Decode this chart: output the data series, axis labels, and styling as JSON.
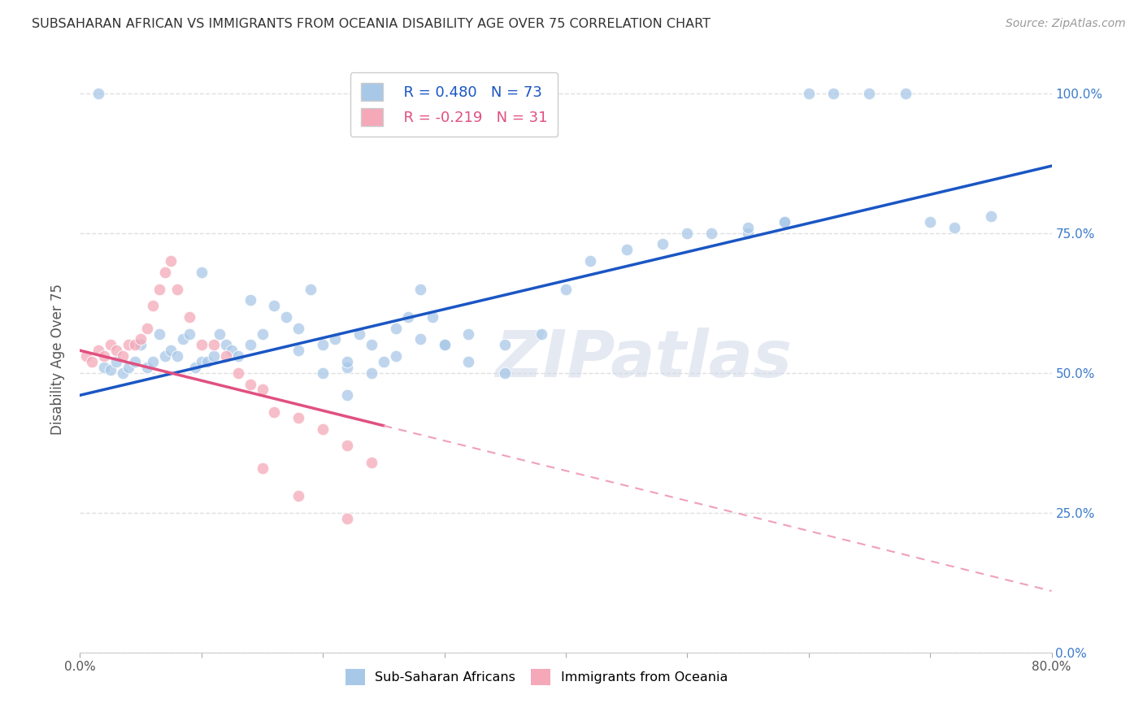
{
  "title": "SUBSAHARAN AFRICAN VS IMMIGRANTS FROM OCEANIA DISABILITY AGE OVER 75 CORRELATION CHART",
  "source": "Source: ZipAtlas.com",
  "ylabel": "Disability Age Over 75",
  "legend_labels": [
    "Sub-Saharan Africans",
    "Immigrants from Oceania"
  ],
  "r_blue": 0.48,
  "n_blue": 73,
  "r_pink": -0.219,
  "n_pink": 31,
  "blue_color": "#a8c8e8",
  "pink_color": "#f4a8b8",
  "blue_line_color": "#1a56c4",
  "pink_line_color": "#e05080",
  "pink_dash_color": "#f0a0b8",
  "watermark": "ZIPatlas",
  "blue_scatter_x": [
    1.5,
    2.0,
    2.5,
    3.0,
    3.5,
    4.0,
    4.5,
    5.0,
    5.5,
    6.0,
    6.5,
    7.0,
    7.5,
    8.0,
    8.5,
    9.0,
    9.5,
    10.0,
    10.5,
    11.0,
    11.5,
    12.0,
    12.5,
    13.0,
    14.0,
    15.0,
    16.0,
    17.0,
    18.0,
    19.0,
    20.0,
    21.0,
    22.0,
    23.0,
    24.0,
    25.0,
    26.0,
    27.0,
    28.0,
    29.0,
    30.0,
    32.0,
    35.0,
    38.0,
    40.0,
    42.0,
    45.0,
    48.0,
    50.0,
    52.0,
    55.0,
    58.0,
    60.0,
    22.0,
    24.0,
    26.0,
    28.0,
    30.0,
    32.0,
    35.0,
    55.0,
    58.0,
    62.0,
    65.0,
    68.0,
    70.0,
    72.0,
    75.0,
    10.0,
    14.0,
    18.0,
    20.0,
    22.0
  ],
  "blue_scatter_y": [
    100.0,
    51.0,
    50.5,
    52.0,
    50.0,
    51.0,
    52.0,
    55.0,
    51.0,
    52.0,
    57.0,
    53.0,
    54.0,
    53.0,
    56.0,
    57.0,
    51.0,
    52.0,
    52.0,
    53.0,
    57.0,
    55.0,
    54.0,
    53.0,
    55.0,
    57.0,
    62.0,
    60.0,
    54.0,
    65.0,
    55.0,
    56.0,
    51.0,
    57.0,
    55.0,
    52.0,
    58.0,
    60.0,
    65.0,
    60.0,
    55.0,
    57.0,
    55.0,
    57.0,
    65.0,
    70.0,
    72.0,
    73.0,
    75.0,
    75.0,
    75.0,
    77.0,
    100.0,
    52.0,
    50.0,
    53.0,
    56.0,
    55.0,
    52.0,
    50.0,
    76.0,
    77.0,
    100.0,
    100.0,
    100.0,
    77.0,
    76.0,
    78.0,
    68.0,
    63.0,
    58.0,
    50.0,
    46.0
  ],
  "pink_scatter_x": [
    0.5,
    1.0,
    1.5,
    2.0,
    2.5,
    3.0,
    3.5,
    4.0,
    4.5,
    5.0,
    5.5,
    6.0,
    6.5,
    7.0,
    7.5,
    8.0,
    9.0,
    10.0,
    11.0,
    12.0,
    13.0,
    14.0,
    15.0,
    16.0,
    18.0,
    20.0,
    22.0,
    24.0,
    15.0,
    18.0,
    22.0
  ],
  "pink_scatter_y": [
    53.0,
    52.0,
    54.0,
    53.0,
    55.0,
    54.0,
    53.0,
    55.0,
    55.0,
    56.0,
    58.0,
    62.0,
    65.0,
    68.0,
    70.0,
    65.0,
    60.0,
    55.0,
    55.0,
    53.0,
    50.0,
    48.0,
    47.0,
    43.0,
    42.0,
    40.0,
    37.0,
    34.0,
    33.0,
    28.0,
    24.0
  ],
  "blue_line_x0": 0.0,
  "blue_line_y0": 46.0,
  "blue_line_x1": 80.0,
  "blue_line_y1": 87.0,
  "pink_line_x0": 0.0,
  "pink_line_y0": 54.0,
  "pink_line_x1": 80.0,
  "pink_line_y1": 11.0,
  "pink_solid_x_end": 25.0,
  "xmin": 0.0,
  "xmax": 80.0,
  "ymin": 0.0,
  "ymax": 105.0,
  "yticks": [
    0,
    25,
    50,
    75,
    100
  ],
  "xtick_positions": [
    0,
    10,
    20,
    30,
    40,
    50,
    60,
    70,
    80
  ],
  "background_color": "#ffffff",
  "grid_color": "#e0e0e0"
}
